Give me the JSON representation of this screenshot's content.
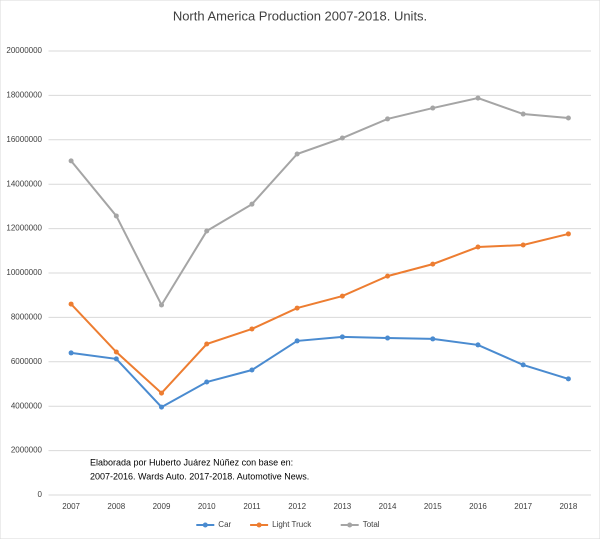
{
  "chart_data": {
    "type": "line",
    "title": "North America Production 2007-2018. Units.",
    "categories": [
      "2007",
      "2008",
      "2009",
      "2010",
      "2011",
      "2012",
      "2013",
      "2014",
      "2015",
      "2016",
      "2017",
      "2018"
    ],
    "series": [
      {
        "name": "Car",
        "color": "#4a8bd0",
        "values": [
          6400000,
          6130000,
          3960000,
          5090000,
          5630000,
          6940000,
          7120000,
          7070000,
          7030000,
          6760000,
          5860000,
          5230000
        ]
      },
      {
        "name": "Light Truck",
        "color": "#ed7d31",
        "values": [
          8600000,
          6440000,
          4590000,
          6800000,
          7480000,
          8420000,
          8960000,
          9860000,
          10400000,
          11170000,
          11260000,
          11760000
        ]
      },
      {
        "name": "Total",
        "color": "#a5a5a5",
        "values": [
          15050000,
          12570000,
          8560000,
          11890000,
          13100000,
          15360000,
          16080000,
          16940000,
          17430000,
          17880000,
          17160000,
          16980000
        ]
      }
    ],
    "ylim": [
      0,
      20000000
    ],
    "yticks": [
      0,
      2000000,
      4000000,
      6000000,
      8000000,
      10000000,
      12000000,
      14000000,
      16000000,
      18000000,
      20000000
    ],
    "grid": true,
    "legend": "bottom",
    "annotations": [
      "Elaborada por Huberto Juárez Núñez con base en:",
      "2007-2016.  Wards Auto. 2017-2018.  Automotive News."
    ]
  }
}
